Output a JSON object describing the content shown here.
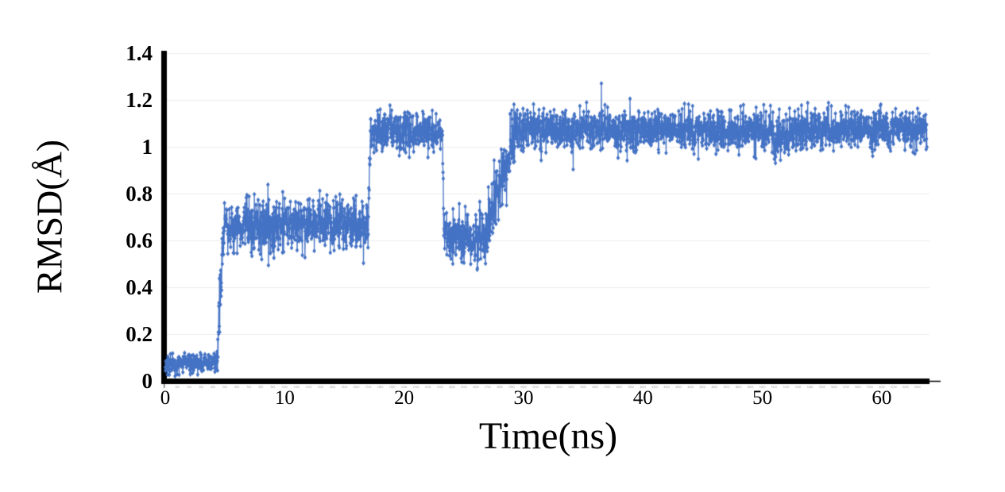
{
  "chart_data": {
    "type": "line",
    "title": "",
    "xlabel": "Time(ns)",
    "ylabel": "RMSD(Å)",
    "xlim": [
      0,
      64
    ],
    "ylim": [
      0,
      1.4
    ],
    "x_ticks": [
      {
        "v": 0,
        "label": "0"
      },
      {
        "v": 10,
        "label": "10"
      },
      {
        "v": 20,
        "label": "20"
      },
      {
        "v": 30,
        "label": "30"
      },
      {
        "v": 40,
        "label": "40"
      },
      {
        "v": 50,
        "label": "50"
      },
      {
        "v": 60,
        "label": "60"
      }
    ],
    "y_ticks": [
      {
        "v": 0,
        "label": "0"
      },
      {
        "v": 0.2,
        "label": "0.2"
      },
      {
        "v": 0.4,
        "label": "0.4"
      },
      {
        "v": 0.6,
        "label": "0.6"
      },
      {
        "v": 0.8,
        "label": "0.8"
      },
      {
        "v": 1,
        "label": "1"
      },
      {
        "v": 1.2,
        "label": "1.2"
      },
      {
        "v": 1.4,
        "label": "1.4"
      }
    ],
    "grid": {
      "horizontal": true,
      "vertical": false,
      "color": "#ECECEC"
    },
    "legend_position": "none",
    "axis_color": "#000000",
    "x_minor_ticks": {
      "interval_ns": 1,
      "micro_label_start": 100,
      "micro_label_step": 100,
      "micro_label_end": 6300,
      "color": "#9A9A9A"
    },
    "series": [
      {
        "name": "RMSD",
        "color": "#4472C4",
        "marker": "diamond",
        "line": true,
        "sample_interval_ns": 0.02,
        "x_end_ns": 63.8,
        "summary": "RMSD ~0.08 Å from 0-4.3 ns; sharp rise at ~4.5 ns to ~0.67 Å plateau (5-17 ns, band 0.55-0.8); step up at 17 ns to ~1.07 Å plateau (17-23.2 ns, band 0.97-1.18); sharp drop at ~23.2 ns to ~0.62 Å (23.3-26.9 ns); noisy climb 27-29 ns back to ~1.07 Å; stays ~1.0-1.18 Å until 63.8 ns",
        "segments": [
          {
            "t0": 0,
            "t1": 4.35,
            "m0": 0.07,
            "m1": 0.08,
            "amp": 0.022,
            "spike_p": 0.01,
            "spike_mag": 0.05,
            "spike_up": 0.8
          },
          {
            "t0": 4.35,
            "t1": 4.95,
            "m0": 0.1,
            "m1": 0.68,
            "amp": 0.075,
            "spike_p": 0.02,
            "spike_mag": 0.08,
            "spike_up": 0.5
          },
          {
            "t0": 4.95,
            "t1": 17.0,
            "m0": 0.665,
            "m1": 0.665,
            "amp": 0.055,
            "spike_p": 0.012,
            "spike_mag": 0.1,
            "spike_up": 0.5
          },
          {
            "t0": 17.0,
            "t1": 17.2,
            "m0": 0.7,
            "m1": 1.06,
            "amp": 0.05,
            "spike_p": 0.0,
            "spike_mag": 0.0,
            "spike_up": 0.5
          },
          {
            "t0": 17.2,
            "t1": 23.2,
            "m0": 1.065,
            "m1": 1.065,
            "amp": 0.042,
            "spike_p": 0.008,
            "spike_mag": 0.08,
            "spike_up": 0.3
          },
          {
            "t0": 23.2,
            "t1": 23.35,
            "m0": 1.05,
            "m1": 0.63,
            "amp": 0.05,
            "spike_p": 0.0,
            "spike_mag": 0.0,
            "spike_up": 0.5
          },
          {
            "t0": 23.35,
            "t1": 26.9,
            "m0": 0.615,
            "m1": 0.615,
            "amp": 0.055,
            "spike_p": 0.012,
            "spike_mag": 0.1,
            "spike_up": 0.6
          },
          {
            "t0": 26.9,
            "t1": 29.3,
            "m0": 0.63,
            "m1": 1.05,
            "amp": 0.07,
            "spike_p": 0.01,
            "spike_mag": 0.08,
            "spike_up": 0.5
          },
          {
            "t0": 29.3,
            "t1": 50.8,
            "m0": 1.07,
            "m1": 1.07,
            "amp": 0.042,
            "spike_p": 0.006,
            "spike_mag": 0.09,
            "spike_up": 0.35
          },
          {
            "t0": 50.8,
            "t1": 52.3,
            "m0": 1.03,
            "m1": 1.03,
            "amp": 0.05,
            "spike_p": 0.008,
            "spike_mag": 0.07,
            "spike_up": 0.3
          },
          {
            "t0": 52.3,
            "t1": 63.8,
            "m0": 1.075,
            "m1": 1.075,
            "amp": 0.042,
            "spike_p": 0.006,
            "spike_mag": 0.09,
            "spike_up": 0.35
          }
        ]
      }
    ]
  },
  "style": {
    "background": "#FFFFFF",
    "accent": "#4472C4",
    "grid_color": "#ECECEC",
    "axis_color": "#000000",
    "minor_tick_color": "#9A9A9A"
  }
}
